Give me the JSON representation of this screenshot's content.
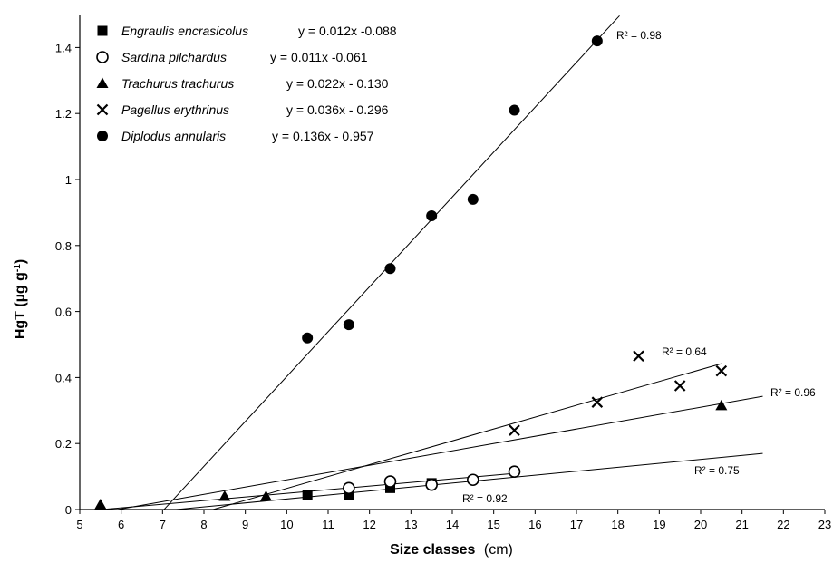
{
  "chart_data": {
    "type": "scatter",
    "xlabel": "Size classes",
    "xunit": "(cm)",
    "ylabel": "HgT (µg g",
    "ylabel_sup": "-1",
    "ylabel_close": ")",
    "xlim": [
      5,
      23
    ],
    "ylim": [
      0,
      1.5
    ],
    "xticks": [
      "5",
      "6",
      "7",
      "8",
      "9",
      "10",
      "11",
      "12",
      "13",
      "14",
      "15",
      "16",
      "17",
      "18",
      "19",
      "20",
      "21",
      "22",
      "23"
    ],
    "yticks": [
      "0",
      "0.2",
      "0.4",
      "0.6",
      "0.8",
      "1",
      "1.2",
      "1.4"
    ],
    "grid": false,
    "legend_position": "top-left",
    "series": [
      {
        "name": "Engraulis encrasicolus",
        "marker": "square",
        "equation": "y = 0.012x -0.088",
        "r2": "R² = 0.75",
        "slope": 0.012,
        "intercept": -0.088,
        "line_x": [
          7.3,
          21.5
        ],
        "x": [
          10.5,
          11.5,
          12.5,
          13.5
        ],
        "y": [
          0.045,
          0.045,
          0.065,
          0.08
        ]
      },
      {
        "name": "Sardina pilchardus",
        "marker": "open-circle",
        "equation": "y = 0.011x -0.061",
        "r2": "R² = 0.92",
        "slope": 0.011,
        "intercept": -0.061,
        "line_x": [
          5.5,
          15.5
        ],
        "x": [
          11.5,
          12.5,
          13.5,
          14.5,
          15.5
        ],
        "y": [
          0.065,
          0.085,
          0.075,
          0.09,
          0.115
        ]
      },
      {
        "name": "Trachurus trachurus",
        "marker": "triangle",
        "equation": "y = 0.022x - 0.130",
        "r2": "R² = 0.96",
        "slope": 0.022,
        "intercept": -0.13,
        "line_x": [
          5.9,
          21.5
        ],
        "x": [
          5.5,
          8.5,
          9.5,
          20.5
        ],
        "y": [
          0.015,
          0.04,
          0.04,
          0.315
        ]
      },
      {
        "name": "Pagellus erythrinus",
        "marker": "x",
        "equation": "y = 0.036x - 0.296",
        "r2": "R² = 0.64",
        "slope": 0.036,
        "intercept": -0.296,
        "line_x": [
          8.22,
          20.5
        ],
        "x": [
          15.5,
          17.5,
          18.5,
          19.5,
          20.5
        ],
        "y": [
          0.24,
          0.325,
          0.465,
          0.375,
          0.42
        ]
      },
      {
        "name": "Diplodus annularis",
        "marker": "filled-circle",
        "equation": "y = 0.136x - 0.957",
        "r2": "R² = 0.98",
        "slope": 0.136,
        "intercept": -0.957,
        "line_x": [
          7.04,
          18.04
        ],
        "x": [
          10.5,
          11.5,
          12.5,
          13.5,
          14.5,
          15.5,
          17.5
        ],
        "y": [
          0.52,
          0.56,
          0.73,
          0.89,
          0.94,
          1.21,
          1.42
        ]
      }
    ]
  }
}
